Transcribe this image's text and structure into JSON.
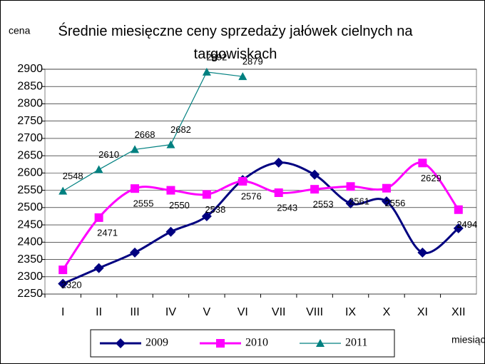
{
  "chart_data": {
    "type": "line",
    "title": "Średnie miesięczne ceny sprzedaży jałówek cielnych na targowiskach",
    "y_label": "cena",
    "x_label": "miesiąc",
    "categories": [
      "I",
      "II",
      "III",
      "IV",
      "V",
      "VI",
      "VII",
      "VIII",
      "IX",
      "X",
      "XI",
      "XII"
    ],
    "series": [
      {
        "name": "2009",
        "color": "#000080",
        "marker": "diamond",
        "smooth": true,
        "data_labels": false,
        "values": [
          2280,
          2325,
          2370,
          2430,
          2475,
          2580,
          2630,
          2595,
          2512,
          2518,
          2370,
          2440
        ]
      },
      {
        "name": "2010",
        "color": "#ff00ff",
        "marker": "square",
        "smooth": true,
        "data_labels": true,
        "values": [
          2320,
          2471,
          2555,
          2550,
          2538,
          2576,
          2543,
          2553,
          2561,
          2556,
          2629,
          2494
        ]
      },
      {
        "name": "2011",
        "color": "#008080",
        "marker": "triangle",
        "smooth": false,
        "data_labels": true,
        "values": [
          2548,
          2610,
          2668,
          2682,
          2892,
          2879,
          null,
          null,
          null,
          null,
          null,
          null
        ]
      }
    ],
    "ylim": [
      2250,
      2900
    ],
    "yticks": [
      2250,
      2300,
      2350,
      2400,
      2450,
      2500,
      2550,
      2600,
      2650,
      2700,
      2750,
      2800,
      2850,
      2900
    ],
    "grid": true,
    "legend": "bottom"
  }
}
